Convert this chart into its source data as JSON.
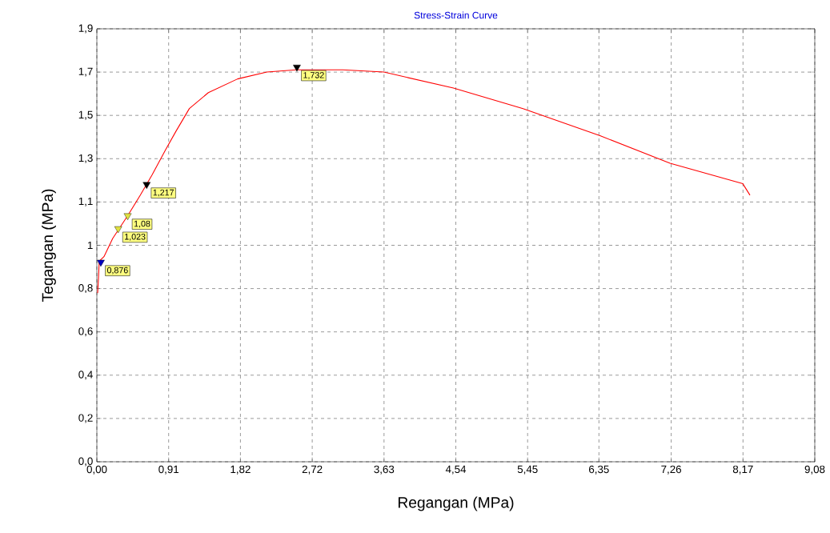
{
  "chart_data": {
    "type": "line",
    "title": "Stress-Strain Curve",
    "xlabel": "Regangan (MPa)",
    "ylabel": "Tegangan (MPa)",
    "xlim": [
      0,
      9.08
    ],
    "ylim": [
      0,
      1.9
    ],
    "xticks": [
      {
        "value": 0,
        "label": "0,00"
      },
      {
        "value": 0.908,
        "label": "0,91"
      },
      {
        "value": 1.816,
        "label": "1,82"
      },
      {
        "value": 2.724,
        "label": "2,72"
      },
      {
        "value": 3.632,
        "label": "3,63"
      },
      {
        "value": 4.54,
        "label": "4,54"
      },
      {
        "value": 5.448,
        "label": "5,45"
      },
      {
        "value": 6.35,
        "label": "6,35"
      },
      {
        "value": 7.264,
        "label": "7,26"
      },
      {
        "value": 8.172,
        "label": "8,17"
      },
      {
        "value": 9.08,
        "label": "9,08"
      }
    ],
    "yticks": [
      {
        "value": 0,
        "label": "0,0"
      },
      {
        "value": 0.19,
        "label": "0,2"
      },
      {
        "value": 0.38,
        "label": "0,4"
      },
      {
        "value": 0.57,
        "label": "0,6"
      },
      {
        "value": 0.76,
        "label": "0,8"
      },
      {
        "value": 0.95,
        "label": "1"
      },
      {
        "value": 1.14,
        "label": "1,1"
      },
      {
        "value": 1.33,
        "label": "1,3"
      },
      {
        "value": 1.52,
        "label": "1,5"
      },
      {
        "value": 1.71,
        "label": "1,7"
      },
      {
        "value": 1.9,
        "label": "1,9"
      }
    ],
    "grid": true,
    "series": [
      {
        "color": "#ff0000",
        "x": [
          0.01,
          0.02,
          0.03,
          0.09,
          0.2,
          0.39,
          0.55,
          0.7,
          0.87,
          1.0,
          1.17,
          1.41,
          1.78,
          2.15,
          2.52,
          3.11,
          3.63,
          4.51,
          5.39,
          6.37,
          7.25,
          8.17,
          8.26
        ],
        "values": [
          0.74,
          0.8,
          0.88,
          0.9,
          0.98,
          1.08,
          1.17,
          1.26,
          1.37,
          1.45,
          1.55,
          1.62,
          1.68,
          1.71,
          1.72,
          1.72,
          1.71,
          1.64,
          1.55,
          1.43,
          1.31,
          1.22,
          1.17
        ]
      },
      {
        "type": "scatter",
        "marker": "triangle",
        "colors": [
          "#0000c0",
          "#e0e040",
          "#e0e040",
          "#000000",
          "#000000"
        ],
        "x": [
          0.05,
          0.27,
          0.39,
          0.63,
          2.53
        ],
        "values": [
          0.876,
          1.023,
          1.08,
          1.217,
          1.732
        ],
        "value_labels": [
          "0,876",
          "1,023",
          "1,08",
          "1,217",
          "1,732"
        ]
      }
    ]
  }
}
